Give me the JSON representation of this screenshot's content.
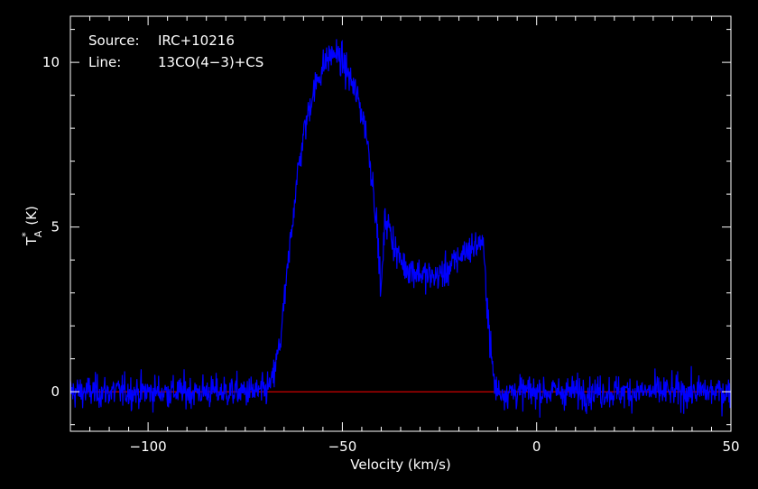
{
  "chart_data": {
    "type": "line",
    "xlabel": "Velocity (km/s)",
    "ylabel": "T",
    "ylabel_sub": "A",
    "ylabel_sup": "*",
    "ylabel_unit": "(K)",
    "xlim": [
      -120,
      50
    ],
    "ylim": [
      -1.2,
      11.4
    ],
    "xticks": [
      -100,
      -50,
      0,
      50
    ],
    "xtick_labels": [
      "−100",
      "−50",
      "0",
      "50"
    ],
    "yticks": [
      0,
      5,
      10
    ],
    "ytick_labels": [
      "0",
      "5",
      "10"
    ],
    "grid": false,
    "annotations": {
      "source_label": "Source:",
      "source_value": "IRC+10216",
      "line_label": "Line:",
      "line_value": "13CO(4−3)+CS"
    },
    "baseline": {
      "y": 0,
      "color": "#ff0000"
    },
    "series": [
      {
        "color": "#0000ff",
        "noise_rms": 0.45,
        "x": [
          -120,
          -70,
          -68,
          -66,
          -64,
          -62,
          -60,
          -58,
          -56,
          -54,
          -52,
          -50,
          -48,
          -46,
          -44,
          -42,
          -41,
          -40,
          -39,
          -38,
          -36,
          -34,
          -32,
          -30,
          -28,
          -26,
          -24,
          -22,
          -20,
          -18,
          -16,
          -14,
          -13,
          -12,
          -11,
          -10,
          50
        ],
        "y": [
          0,
          0,
          0.3,
          1.5,
          3.8,
          6.2,
          7.8,
          8.9,
          9.6,
          10.1,
          10.3,
          10.0,
          9.5,
          8.9,
          8.0,
          6.2,
          4.8,
          3.0,
          5.3,
          5.0,
          4.2,
          3.8,
          3.7,
          3.6,
          3.5,
          3.5,
          3.6,
          3.8,
          4.1,
          4.3,
          4.4,
          4.6,
          3.2,
          1.5,
          0.3,
          0,
          0
        ]
      }
    ]
  }
}
